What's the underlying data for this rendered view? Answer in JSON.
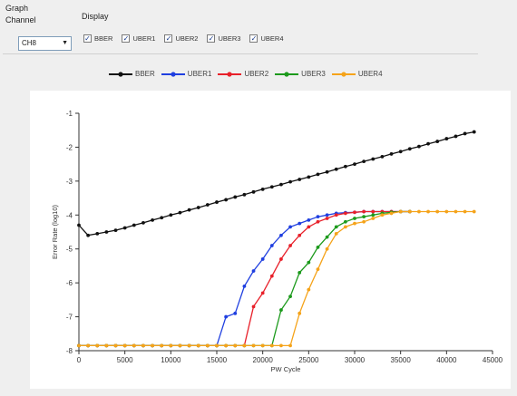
{
  "panel": {
    "title": "Graph",
    "channel_label": "Channel",
    "channel_value": "CH8",
    "display_label": "Display"
  },
  "display_checks": [
    {
      "label": "BBER",
      "checked": true
    },
    {
      "label": "UBER1",
      "checked": true
    },
    {
      "label": "UBER2",
      "checked": true
    },
    {
      "label": "UBER3",
      "checked": true
    },
    {
      "label": "UBER4",
      "checked": true
    }
  ],
  "chart_data": {
    "type": "line",
    "xlabel": "PW Cycle",
    "ylabel": "Error Rate (log10)",
    "xlim": [
      0,
      45000
    ],
    "ylim": [
      -8,
      -1
    ],
    "xticks": [
      0,
      5000,
      10000,
      15000,
      20000,
      25000,
      30000,
      35000,
      40000,
      45000
    ],
    "xtick_labels": [
      "0",
      "5000",
      "10000",
      "15000",
      "20000",
      "25000",
      "30000",
      "35000",
      "40000",
      "45000"
    ],
    "yticks": [
      -8,
      -7,
      -6,
      -5,
      -4,
      -3,
      -2,
      -1
    ],
    "ytick_labels": [
      "-8",
      "-7",
      "-6",
      "-5",
      "-4",
      "-3",
      "-2",
      "-1"
    ],
    "legend_position": "top",
    "series": [
      {
        "name": "BBER",
        "color": "#111111",
        "x": [
          0,
          1000,
          2000,
          3000,
          4000,
          5000,
          6000,
          7000,
          8000,
          9000,
          10000,
          11000,
          12000,
          13000,
          14000,
          15000,
          16000,
          17000,
          18000,
          19000,
          20000,
          21000,
          22000,
          23000,
          24000,
          25000,
          26000,
          27000,
          28000,
          29000,
          30000,
          31000,
          32000,
          33000,
          34000,
          35000,
          36000,
          37000,
          38000,
          39000,
          40000,
          41000,
          42000,
          43000
        ],
        "y": [
          -4.3,
          -4.6,
          -4.55,
          -4.5,
          -4.45,
          -4.38,
          -4.3,
          -4.23,
          -4.15,
          -4.08,
          -4.0,
          -3.93,
          -3.85,
          -3.78,
          -3.7,
          -3.62,
          -3.55,
          -3.47,
          -3.4,
          -3.32,
          -3.24,
          -3.17,
          -3.1,
          -3.02,
          -2.95,
          -2.88,
          -2.8,
          -2.73,
          -2.65,
          -2.57,
          -2.5,
          -2.42,
          -2.35,
          -2.28,
          -2.2,
          -2.13,
          -2.05,
          -1.98,
          -1.9,
          -1.83,
          -1.75,
          -1.68,
          -1.6,
          -1.55
        ]
      },
      {
        "name": "UBER1",
        "color": "#1f3fe0",
        "x": [
          0,
          1000,
          2000,
          3000,
          4000,
          5000,
          6000,
          7000,
          8000,
          9000,
          10000,
          11000,
          12000,
          13000,
          14000,
          15000,
          16000,
          17000,
          18000,
          19000,
          20000,
          21000,
          22000,
          23000,
          24000,
          25000,
          26000,
          27000,
          28000,
          29000,
          30000,
          31000,
          32000,
          33000,
          34000,
          35000,
          36000
        ],
        "y": [
          -7.85,
          -7.85,
          -7.85,
          -7.85,
          -7.85,
          -7.85,
          -7.85,
          -7.85,
          -7.85,
          -7.85,
          -7.85,
          -7.85,
          -7.85,
          -7.85,
          -7.85,
          -7.85,
          -7.0,
          -6.9,
          -6.1,
          -5.65,
          -5.3,
          -4.9,
          -4.6,
          -4.35,
          -4.25,
          -4.15,
          -4.05,
          -4.0,
          -3.95,
          -3.93,
          -3.92,
          -3.9,
          -3.9,
          -3.9,
          -3.9,
          -3.9,
          -3.9
        ]
      },
      {
        "name": "UBER2",
        "color": "#e8202a",
        "x": [
          0,
          1000,
          2000,
          3000,
          4000,
          5000,
          6000,
          7000,
          8000,
          9000,
          10000,
          11000,
          12000,
          13000,
          14000,
          15000,
          16000,
          17000,
          18000,
          19000,
          20000,
          21000,
          22000,
          23000,
          24000,
          25000,
          26000,
          27000,
          28000,
          29000,
          30000,
          31000,
          32000,
          33000,
          34000,
          35000,
          36000
        ],
        "y": [
          -7.85,
          -7.85,
          -7.85,
          -7.85,
          -7.85,
          -7.85,
          -7.85,
          -7.85,
          -7.85,
          -7.85,
          -7.85,
          -7.85,
          -7.85,
          -7.85,
          -7.85,
          -7.85,
          -7.85,
          -7.85,
          -7.85,
          -6.7,
          -6.3,
          -5.8,
          -5.3,
          -4.9,
          -4.6,
          -4.35,
          -4.2,
          -4.1,
          -4.0,
          -3.95,
          -3.92,
          -3.9,
          -3.9,
          -3.9,
          -3.9,
          -3.9,
          -3.9
        ]
      },
      {
        "name": "UBER3",
        "color": "#1c9a1c",
        "x": [
          0,
          1000,
          2000,
          3000,
          4000,
          5000,
          6000,
          7000,
          8000,
          9000,
          10000,
          11000,
          12000,
          13000,
          14000,
          15000,
          16000,
          17000,
          18000,
          19000,
          20000,
          21000,
          22000,
          23000,
          24000,
          25000,
          26000,
          27000,
          28000,
          29000,
          30000,
          31000,
          32000,
          33000,
          34000,
          35000,
          36000
        ],
        "y": [
          -7.85,
          -7.85,
          -7.85,
          -7.85,
          -7.85,
          -7.85,
          -7.85,
          -7.85,
          -7.85,
          -7.85,
          -7.85,
          -7.85,
          -7.85,
          -7.85,
          -7.85,
          -7.85,
          -7.85,
          -7.85,
          -7.85,
          -7.85,
          -7.85,
          -7.85,
          -6.8,
          -6.4,
          -5.7,
          -5.4,
          -4.95,
          -4.65,
          -4.35,
          -4.2,
          -4.1,
          -4.05,
          -4.0,
          -3.95,
          -3.92,
          -3.9,
          -3.9
        ]
      },
      {
        "name": "UBER4",
        "color": "#f5a31a",
        "x": [
          0,
          1000,
          2000,
          3000,
          4000,
          5000,
          6000,
          7000,
          8000,
          9000,
          10000,
          11000,
          12000,
          13000,
          14000,
          15000,
          16000,
          17000,
          18000,
          19000,
          20000,
          21000,
          22000,
          23000,
          24000,
          25000,
          26000,
          27000,
          28000,
          29000,
          30000,
          31000,
          32000,
          33000,
          34000,
          35000,
          36000,
          37000,
          38000,
          39000,
          40000,
          41000,
          42000,
          43000
        ],
        "y": [
          -7.85,
          -7.85,
          -7.85,
          -7.85,
          -7.85,
          -7.85,
          -7.85,
          -7.85,
          -7.85,
          -7.85,
          -7.85,
          -7.85,
          -7.85,
          -7.85,
          -7.85,
          -7.85,
          -7.85,
          -7.85,
          -7.85,
          -7.85,
          -7.85,
          -7.85,
          -7.85,
          -7.85,
          -6.9,
          -6.2,
          -5.6,
          -5.0,
          -4.55,
          -4.35,
          -4.25,
          -4.2,
          -4.1,
          -4.0,
          -3.95,
          -3.9,
          -3.9,
          -3.9,
          -3.9,
          -3.9,
          -3.9,
          -3.9,
          -3.9,
          -3.9
        ]
      }
    ]
  }
}
